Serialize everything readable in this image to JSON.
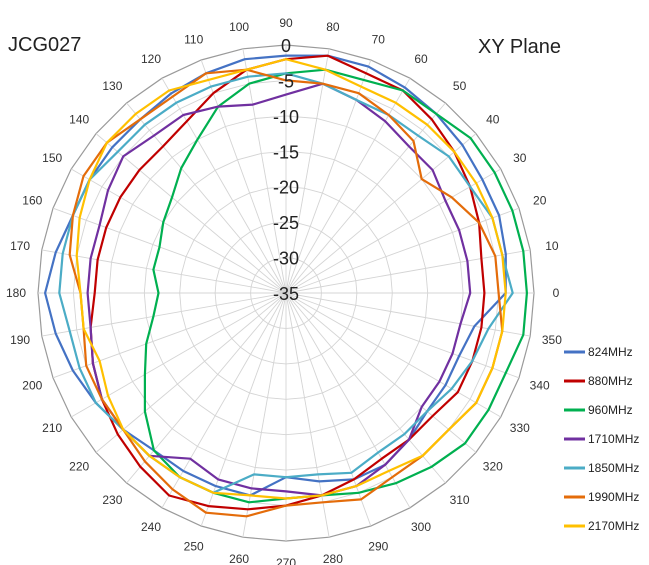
{
  "chart_data": {
    "type": "radar",
    "title_left": "JCG027",
    "title_right": "XY  Plane",
    "radial_axis": {
      "min": -35,
      "max": 0,
      "ticks": [
        "-35",
        "-30",
        "-25",
        "-20",
        "-15",
        "-10",
        "-5",
        "0"
      ]
    },
    "angle_labels": [
      "0",
      "10",
      "20",
      "30",
      "40",
      "50",
      "60",
      "70",
      "80",
      "90",
      "100",
      "110",
      "120",
      "130",
      "140",
      "150",
      "160",
      "170",
      "180",
      "190",
      "200",
      "210",
      "220",
      "230",
      "240",
      "250",
      "260",
      "270",
      "280",
      "290",
      "300",
      "310",
      "320",
      "330",
      "340",
      "350"
    ],
    "legend_position": "right",
    "series": [
      {
        "name": "824MHz",
        "color": "#4472C4",
        "values": [
          -4,
          -3.5,
          -3,
          -3,
          -2.5,
          -2,
          -1.5,
          -1,
          -1,
          -1.5,
          -1.5,
          -2,
          -2.5,
          -3,
          -3,
          -3,
          -3,
          -2,
          -1,
          -2,
          -3,
          -4,
          -5,
          -6,
          -6,
          -6,
          -6,
          -9,
          -8,
          -7,
          -7,
          -8,
          -9,
          -9,
          -9,
          -8
        ]
      },
      {
        "name": "880MHz",
        "color": "#C00000",
        "values": [
          -7,
          -7,
          -6,
          -5,
          -4,
          -3,
          -2,
          -2,
          -1,
          -2,
          -3,
          -5,
          -7,
          -8,
          -8,
          -8,
          -8,
          -8,
          -8,
          -7,
          -6,
          -5,
          -4,
          -3,
          -2,
          -3,
          -4,
          -5,
          -6,
          -7,
          -8,
          -8,
          -8,
          -7,
          -7,
          -7
        ]
      },
      {
        "name": "960MHz",
        "color": "#00B050",
        "values": [
          -1,
          -1,
          -1,
          -1,
          -1,
          -2,
          -2,
          -3,
          -3,
          -4,
          -5,
          -7,
          -10,
          -12,
          -14,
          -15,
          -16,
          -16,
          -17,
          -16,
          -14,
          -12,
          -9,
          -6,
          -5,
          -5,
          -5,
          -6,
          -6,
          -5,
          -4,
          -3,
          -2,
          -2,
          -2,
          -1
        ]
      },
      {
        "name": "1710MHz",
        "color": "#7030A0",
        "values": [
          -9,
          -9,
          -9,
          -9,
          -8,
          -8,
          -7,
          -6,
          -5,
          -7,
          -8,
          -7,
          -6,
          -6,
          -5,
          -6,
          -7,
          -7,
          -7,
          -7,
          -6,
          -5,
          -5,
          -5,
          -8,
          -7,
          -7,
          -7,
          -6,
          -6,
          -7,
          -8,
          -10,
          -10,
          -10,
          -10
        ]
      },
      {
        "name": "1850MHz",
        "color": "#4BACC6",
        "values": [
          -3,
          -4,
          -4,
          -5,
          -5,
          -6,
          -6,
          -6,
          -5,
          -4,
          -4,
          -4,
          -4,
          -4,
          -4,
          -3,
          -3,
          -3,
          -3,
          -4,
          -4,
          -4,
          -5,
          -5,
          -5,
          -5,
          -9,
          -9,
          -9,
          -8,
          -9,
          -9,
          -9,
          -8,
          -7,
          -6
        ]
      },
      {
        "name": "1990MHz",
        "color": "#E46C0A",
        "values": [
          -5,
          -5,
          -6,
          -8,
          -10,
          -7,
          -6,
          -5,
          -5,
          -5,
          -3,
          -2,
          -3,
          -3,
          -2,
          -2,
          -3,
          -4,
          -6,
          -6,
          -5,
          -5,
          -5,
          -4,
          -3,
          -2,
          -3,
          -5,
          -5,
          -4,
          -5,
          -5,
          -5,
          -4,
          -4,
          -4
        ]
      },
      {
        "name": "2170MHz",
        "color": "#FFC000",
        "values": [
          -4,
          -4,
          -4,
          -4,
          -4,
          -4,
          -4,
          -4,
          -3,
          -2,
          -3,
          -3,
          -2,
          -2,
          -2,
          -3,
          -4,
          -5,
          -6,
          -6,
          -7,
          -6,
          -5,
          -5,
          -5,
          -5,
          -6,
          -6,
          -6,
          -6,
          -6,
          -5,
          -5,
          -4,
          -4,
          -4
        ]
      }
    ]
  }
}
